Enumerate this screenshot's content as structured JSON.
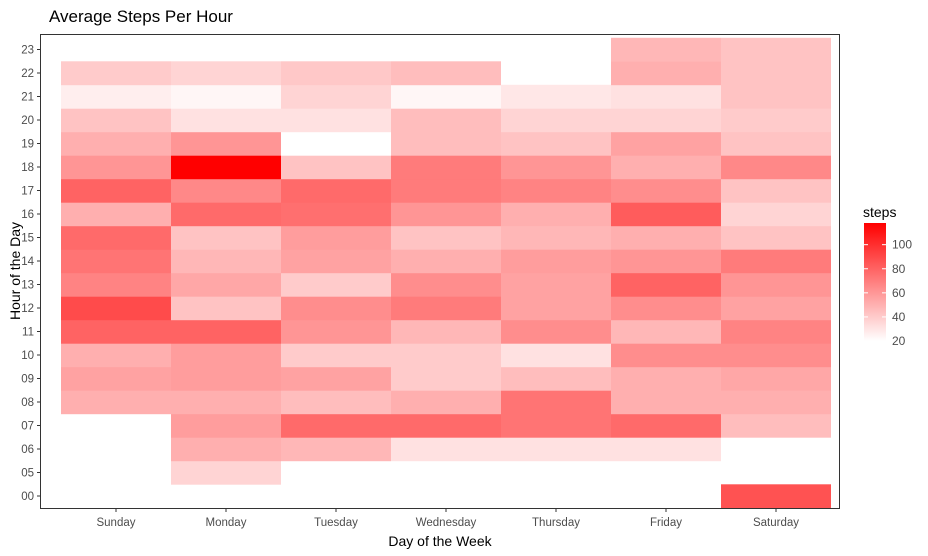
{
  "chart_data": {
    "type": "heatmap",
    "title": "Average Steps Per Hour",
    "xlabel": "Day of the Week",
    "ylabel": "Hour of the Day",
    "x_categories": [
      "Sunday",
      "Monday",
      "Tuesday",
      "Wednesday",
      "Thursday",
      "Friday",
      "Saturday"
    ],
    "y_categories": [
      "00",
      "05",
      "06",
      "07",
      "08",
      "09",
      "10",
      "11",
      "12",
      "13",
      "14",
      "15",
      "16",
      "17",
      "18",
      "19",
      "20",
      "21",
      "22",
      "23"
    ],
    "legend": {
      "title": "steps",
      "ticks": [
        20,
        40,
        60,
        80,
        100
      ],
      "range": [
        20,
        118
      ],
      "low_color": "#ffffff",
      "high_color": "#ff0000",
      "placement": "right"
    },
    "grid": false,
    "values": {
      "Sunday": {
        "08": 45,
        "09": 50,
        "10": 45,
        "11": 75,
        "12": 85,
        "13": 62,
        "14": 68,
        "15": 72,
        "16": 45,
        "17": 75,
        "18": 55,
        "19": 45,
        "20": 38,
        "21": 24,
        "22": 35
      },
      "Monday": {
        "05": 32,
        "06": 45,
        "07": 52,
        "08": 45,
        "09": 52,
        "10": 52,
        "11": 75,
        "12": 38,
        "13": 48,
        "14": 42,
        "15": 38,
        "16": 72,
        "17": 60,
        "18": 118,
        "19": 55,
        "20": 28,
        "21": 22,
        "22": 32
      },
      "Tuesday": {
        "06": 42,
        "07": 72,
        "08": 40,
        "09": 50,
        "10": 35,
        "11": 55,
        "12": 58,
        "13": 35,
        "14": 50,
        "15": 52,
        "16": 70,
        "17": 72,
        "18": 38,
        "19": 20,
        "20": 28,
        "21": 32,
        "22": 36
      },
      "Wednesday": {
        "06": 28,
        "07": 72,
        "08": 45,
        "09": 35,
        "10": 35,
        "11": 42,
        "12": 65,
        "13": 58,
        "14": 45,
        "15": 38,
        "16": 55,
        "17": 65,
        "18": 65,
        "19": 40,
        "20": 40,
        "21": 22,
        "22": 40
      },
      "Thursday": {
        "06": 28,
        "07": 68,
        "08": 68,
        "09": 40,
        "10": 28,
        "11": 58,
        "12": 50,
        "13": 50,
        "14": 52,
        "15": 42,
        "16": 45,
        "17": 62,
        "18": 55,
        "19": 38,
        "20": 32,
        "21": 26
      },
      "Friday": {
        "06": 28,
        "07": 72,
        "08": 45,
        "09": 45,
        "10": 58,
        "11": 42,
        "12": 58,
        "13": 75,
        "14": 55,
        "15": 45,
        "16": 78,
        "17": 58,
        "18": 45,
        "19": 50,
        "20": 32,
        "21": 28,
        "22": 45,
        "23": 42
      },
      "Saturday": {
        "00": 82,
        "07": 40,
        "08": 45,
        "09": 48,
        "10": 58,
        "11": 62,
        "12": 50,
        "13": 55,
        "14": 65,
        "15": 38,
        "16": 32,
        "17": 38,
        "18": 60,
        "19": 38,
        "20": 35,
        "21": 38,
        "22": 38,
        "23": 38
      }
    }
  }
}
